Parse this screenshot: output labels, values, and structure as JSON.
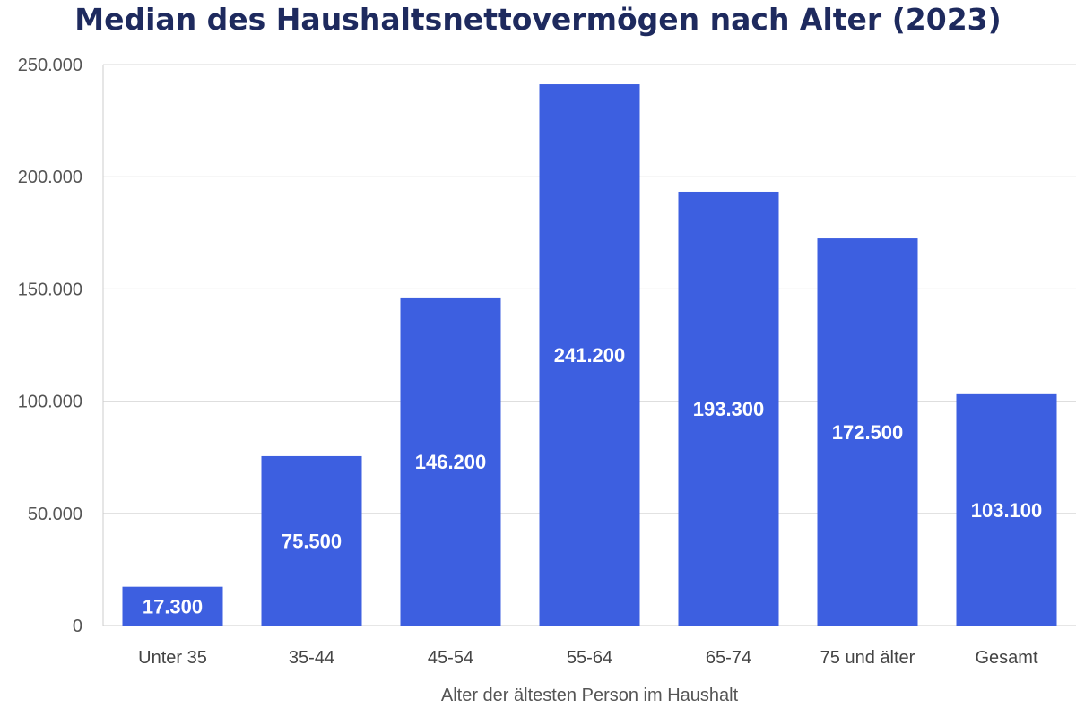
{
  "chart_data": {
    "type": "bar",
    "title": "Median des Haushaltsnettovermögen nach Alter (2023)",
    "xlabel": "Alter der ältesten Person im Haushalt",
    "ylabel": "",
    "categories": [
      "Unter 35",
      "35-44",
      "45-54",
      "55-64",
      "65-74",
      "75 und älter",
      "Gesamt"
    ],
    "values": [
      17300,
      75500,
      146200,
      241200,
      193300,
      172500,
      103100
    ],
    "data_labels": [
      "17.300",
      "75.500",
      "146.200",
      "241.200",
      "193.300",
      "172.500",
      "103.100"
    ],
    "ylim": [
      0,
      250000
    ],
    "yticks": [
      0,
      50000,
      100000,
      150000,
      200000,
      250000
    ],
    "ytick_labels": [
      "0",
      "50.000",
      "100.000",
      "150.000",
      "200.000",
      "250.000"
    ],
    "grid": true,
    "colors": {
      "bar": "#3d5fe0",
      "title": "#1e2a5e",
      "grid": "#d9d9d9",
      "axis": "#cccccc"
    }
  }
}
